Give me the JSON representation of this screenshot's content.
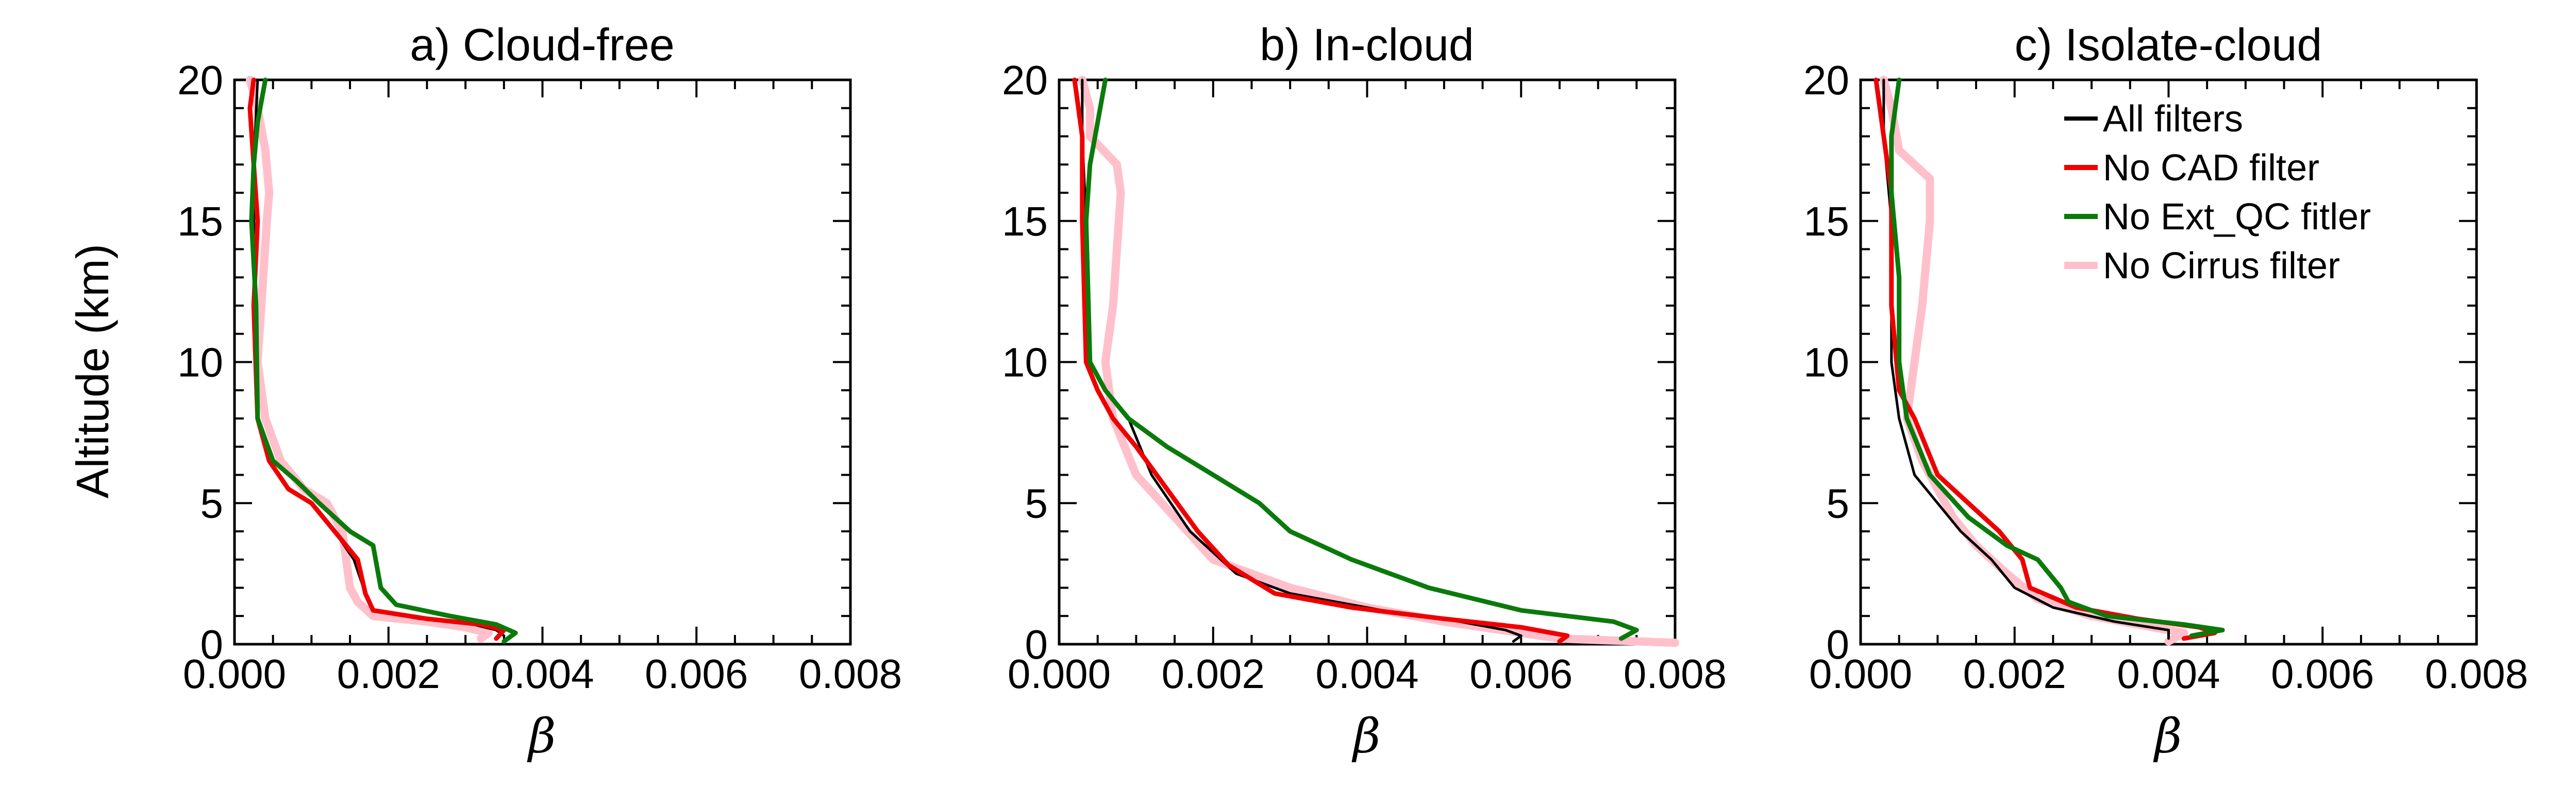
{
  "figure": {
    "ylabel": "Altitude (km)",
    "xlabel": "β",
    "legend": {
      "placement": "top-right of panel c",
      "entries": [
        {
          "label": "All filters",
          "color": "#000000"
        },
        {
          "label": "No CAD filter",
          "color": "#ee0000"
        },
        {
          "label": "No Ext_QC fitler",
          "color": "#0a7a0a"
        },
        {
          "label": "No Cirrus filter",
          "color": "#ffc0cb"
        }
      ]
    }
  },
  "chart_data": [
    {
      "type": "line",
      "title": "a) Cloud-free",
      "xlabel": "β",
      "ylabel": "Altitude (km)",
      "xlim": [
        0,
        0.008
      ],
      "ylim": [
        0,
        20
      ],
      "xticks": [
        "0.000",
        "0.002",
        "0.004",
        "0.006",
        "0.008"
      ],
      "yticks": [
        "0",
        "5",
        "10",
        "15",
        "20"
      ],
      "series": [
        {
          "name": "No Cirrus filter",
          "color": "#ffc0cb",
          "width": 16,
          "x": [
            0.0002,
            0.0003,
            0.0004,
            0.00045,
            0.00042,
            0.0003,
            0.0004,
            0.0006,
            0.0009,
            0.0012,
            0.0014,
            0.0015,
            0.0016,
            0.0018,
            0.0025,
            0.003,
            0.0033,
            0.0032
          ],
          "y": [
            20,
            19,
            17.5,
            16,
            15,
            10,
            8,
            6.5,
            5.5,
            5,
            4,
            2,
            1.5,
            1.0,
            0.8,
            0.6,
            0.4,
            0.2
          ]
        },
        {
          "name": "All filters",
          "color": "#000000",
          "width": 5,
          "x": [
            0.0003,
            0.00025,
            0.00025,
            0.00028,
            0.0003,
            0.00045,
            0.0007,
            0.001,
            0.0013,
            0.00155,
            0.0017,
            0.0018,
            0.0024,
            0.0031,
            0.0034,
            0.0035
          ],
          "y": [
            20,
            17,
            15,
            10,
            8,
            6.5,
            5.5,
            5,
            4,
            3,
            1.8,
            1.2,
            0.9,
            0.7,
            0.5,
            0.3
          ]
        },
        {
          "name": "No CAD filter",
          "color": "#ee0000",
          "width": 9,
          "x": [
            0.00025,
            0.0002,
            0.00025,
            0.0003,
            0.00025,
            0.0003,
            0.00045,
            0.0007,
            0.001,
            0.0013,
            0.0016,
            0.0017,
            0.0018,
            0.0025,
            0.0032,
            0.0035,
            0.0034
          ],
          "y": [
            20,
            19,
            17,
            15,
            12,
            8,
            6.5,
            5.5,
            5,
            4,
            3,
            1.8,
            1.2,
            0.9,
            0.7,
            0.5,
            0.2
          ]
        },
        {
          "name": "No Ext_QC fitler",
          "color": "#0a7a0a",
          "width": 9,
          "x": [
            0.0004,
            0.0003,
            0.00025,
            0.00022,
            0.00028,
            0.0003,
            0.0005,
            0.0008,
            0.0011,
            0.0015,
            0.0018,
            0.0019,
            0.0021,
            0.0028,
            0.0034,
            0.00365,
            0.0035
          ],
          "y": [
            20,
            18.5,
            17,
            15,
            12,
            8,
            6.5,
            5.8,
            5,
            4,
            3.5,
            2,
            1.4,
            1,
            0.7,
            0.4,
            0.1
          ]
        }
      ]
    },
    {
      "type": "line",
      "title": "b) In-cloud",
      "xlabel": "β",
      "ylabel": "",
      "xlim": [
        0,
        0.008
      ],
      "ylim": [
        0,
        20
      ],
      "xticks": [
        "0.000",
        "0.002",
        "0.004",
        "0.006",
        "0.008"
      ],
      "yticks": [
        "0",
        "5",
        "10",
        "15",
        "20"
      ],
      "series": [
        {
          "name": "No Cirrus filter",
          "color": "#ffc0cb",
          "width": 16,
          "x": [
            0.0003,
            0.0004,
            0.0004,
            0.00075,
            0.0008,
            0.0007,
            0.0006,
            0.0007,
            0.001,
            0.0015,
            0.002,
            0.003,
            0.004,
            0.005,
            0.006,
            0.0065,
            0.0075,
            0.008
          ],
          "y": [
            20,
            19,
            18,
            17,
            16,
            12,
            10,
            8,
            6,
            4.5,
            3,
            2,
            1.3,
            0.8,
            0.4,
            0.2,
            0.1,
            0.05
          ]
        },
        {
          "name": "All filters",
          "color": "#000000",
          "width": 5,
          "x": [
            0.0003,
            0.0003,
            0.00035,
            0.0004,
            0.0006,
            0.0009,
            0.0012,
            0.0017,
            0.0023,
            0.003,
            0.0042,
            0.0052,
            0.0058,
            0.006,
            0.0059
          ],
          "y": [
            20,
            18,
            15,
            10,
            9,
            8,
            6,
            4,
            2.5,
            1.8,
            1.2,
            0.8,
            0.5,
            0.3,
            0.1
          ]
        },
        {
          "name": "No CAD filter",
          "color": "#ee0000",
          "width": 9,
          "x": [
            0.0002,
            0.0003,
            0.0003,
            0.00035,
            0.0005,
            0.0007,
            0.001,
            0.0014,
            0.0018,
            0.0022,
            0.0028,
            0.0038,
            0.005,
            0.006,
            0.0066,
            0.0065
          ],
          "y": [
            20,
            18,
            15,
            10,
            9,
            8,
            7,
            5.5,
            4,
            2.8,
            1.8,
            1.3,
            0.9,
            0.6,
            0.3,
            0.1
          ]
        },
        {
          "name": "No Ext_QC fitler",
          "color": "#0a7a0a",
          "width": 9,
          "x": [
            0.0006,
            0.0005,
            0.0004,
            0.00035,
            0.0004,
            0.0006,
            0.0009,
            0.0014,
            0.002,
            0.0026,
            0.003,
            0.0038,
            0.0048,
            0.006,
            0.0072,
            0.0075,
            0.0073
          ],
          "y": [
            20,
            18.5,
            17,
            15,
            10,
            9,
            8,
            7,
            6,
            5,
            4,
            3,
            2,
            1.2,
            0.8,
            0.5,
            0.2
          ]
        }
      ]
    },
    {
      "type": "line",
      "title": "c) Isolate-cloud",
      "xlabel": "β",
      "ylabel": "",
      "xlim": [
        0,
        0.008
      ],
      "ylim": [
        0,
        20
      ],
      "xticks": [
        "0.000",
        "0.002",
        "0.004",
        "0.006",
        "0.008"
      ],
      "yticks": [
        "0",
        "5",
        "10",
        "15",
        "20"
      ],
      "series": [
        {
          "name": "No Cirrus filter",
          "color": "#ffc0cb",
          "width": 16,
          "x": [
            0.0003,
            0.0004,
            0.0005,
            0.0009,
            0.0009,
            0.0008,
            0.0007,
            0.0006,
            0.0008,
            0.001,
            0.0012,
            0.0015,
            0.0019,
            0.0023,
            0.003,
            0.0038,
            0.0042,
            0.004
          ],
          "y": [
            20,
            19,
            17.5,
            16.5,
            15,
            12,
            10,
            8,
            6.5,
            5.5,
            4.5,
            3.5,
            2.5,
            1.6,
            1,
            0.6,
            0.4,
            0.1
          ]
        },
        {
          "name": "All filters",
          "color": "#000000",
          "width": 5,
          "x": [
            0.0003,
            0.0003,
            0.0004,
            0.0004,
            0.0005,
            0.0007,
            0.001,
            0.0013,
            0.0017,
            0.002,
            0.0025,
            0.0033,
            0.004,
            0.004
          ],
          "y": [
            20,
            18,
            15,
            10,
            8,
            6,
            5,
            4,
            3,
            2,
            1.3,
            0.8,
            0.5,
            0.2
          ]
        },
        {
          "name": "No CAD filter",
          "color": "#ee0000",
          "width": 9,
          "x": [
            0.0002,
            0.0003,
            0.0004,
            0.0004,
            0.0005,
            0.0007,
            0.001,
            0.0014,
            0.0018,
            0.0021,
            0.0022,
            0.0028,
            0.0036,
            0.0044,
            0.0046,
            0.0042
          ],
          "y": [
            20,
            18,
            16,
            12,
            9,
            8,
            6,
            5,
            4,
            3,
            2,
            1.3,
            0.9,
            0.6,
            0.4,
            0.2
          ]
        },
        {
          "name": "No Ext_QC fitler",
          "color": "#0a7a0a",
          "width": 9,
          "x": [
            0.0005,
            0.0004,
            0.0004,
            0.0005,
            0.0005,
            0.0006,
            0.0009,
            0.0014,
            0.0019,
            0.0023,
            0.0026,
            0.0027,
            0.0032,
            0.0042,
            0.0047,
            0.0043
          ],
          "y": [
            20,
            18,
            16,
            13,
            10,
            8,
            6,
            4.5,
            3.5,
            3,
            2,
            1.5,
            1,
            0.7,
            0.5,
            0.3
          ]
        }
      ]
    }
  ]
}
